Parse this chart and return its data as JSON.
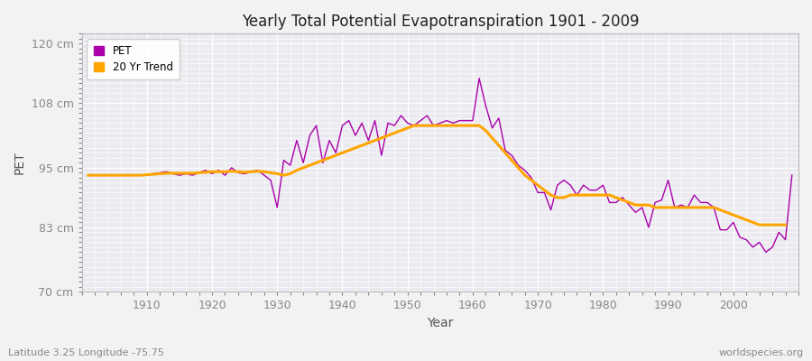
{
  "title": "Yearly Total Potential Evapotranspiration 1901 - 2009",
  "xlabel": "Year",
  "ylabel": "PET",
  "subtitle": "Latitude 3.25 Longitude -75.75",
  "watermark": "worldspecies.org",
  "ylim": [
    70,
    122
  ],
  "yticks": [
    70,
    83,
    95,
    108,
    120
  ],
  "ytick_labels": [
    "70 cm",
    "83 cm",
    "95 cm",
    "108 cm",
    "120 cm"
  ],
  "xlim": [
    1900,
    2010
  ],
  "xticks": [
    1910,
    1920,
    1930,
    1940,
    1950,
    1960,
    1970,
    1980,
    1990,
    2000
  ],
  "pet_color": "#AA00AA",
  "trend_color": "#FFA500",
  "fig_bg_color": "#F2F2F2",
  "plot_bg_color": "#EAEAF0",
  "grid_color": "#FFFFFF",
  "spine_color": "#BBBBBB",
  "tick_color": "#888888",
  "text_color": "#555555",
  "title_color": "#222222",
  "legend_bg": "#FFFFFF",
  "years": [
    1901,
    1902,
    1903,
    1904,
    1905,
    1906,
    1907,
    1908,
    1909,
    1910,
    1911,
    1912,
    1913,
    1914,
    1915,
    1916,
    1917,
    1918,
    1919,
    1920,
    1921,
    1922,
    1923,
    1924,
    1925,
    1926,
    1927,
    1928,
    1929,
    1930,
    1931,
    1932,
    1933,
    1934,
    1935,
    1936,
    1937,
    1938,
    1939,
    1940,
    1941,
    1942,
    1943,
    1944,
    1945,
    1946,
    1947,
    1948,
    1949,
    1950,
    1951,
    1952,
    1953,
    1954,
    1955,
    1956,
    1957,
    1958,
    1959,
    1960,
    1961,
    1962,
    1963,
    1964,
    1965,
    1966,
    1967,
    1968,
    1969,
    1970,
    1971,
    1972,
    1973,
    1974,
    1975,
    1976,
    1977,
    1978,
    1979,
    1980,
    1981,
    1982,
    1983,
    1984,
    1985,
    1986,
    1987,
    1988,
    1989,
    1990,
    1991,
    1992,
    1993,
    1994,
    1995,
    1996,
    1997,
    1998,
    1999,
    2000,
    2001,
    2002,
    2003,
    2004,
    2005,
    2006,
    2007,
    2008,
    2009
  ],
  "pet_values": [
    93.5,
    93.5,
    93.5,
    93.5,
    93.5,
    93.5,
    93.5,
    93.5,
    93.5,
    93.5,
    93.8,
    94.0,
    94.2,
    93.8,
    93.5,
    93.8,
    93.5,
    94.0,
    94.5,
    93.8,
    94.5,
    93.5,
    95.0,
    94.0,
    93.8,
    94.2,
    94.5,
    93.5,
    92.5,
    87.0,
    96.5,
    95.5,
    100.5,
    96.0,
    101.5,
    103.5,
    96.0,
    100.5,
    98.0,
    103.5,
    104.5,
    101.5,
    104.0,
    100.5,
    104.5,
    97.5,
    104.0,
    103.5,
    105.5,
    104.0,
    103.5,
    104.5,
    105.5,
    103.5,
    104.0,
    104.5,
    104.0,
    104.5,
    104.5,
    104.5,
    113.0,
    107.5,
    103.0,
    105.0,
    98.5,
    97.5,
    95.5,
    94.5,
    93.0,
    90.0,
    90.0,
    86.5,
    91.5,
    92.5,
    91.5,
    89.5,
    91.5,
    90.5,
    90.5,
    91.5,
    88.0,
    88.0,
    89.0,
    87.5,
    86.0,
    87.0,
    83.0,
    88.0,
    88.5,
    92.5,
    87.0,
    87.5,
    87.0,
    89.5,
    88.0,
    88.0,
    87.0,
    82.5,
    82.5,
    84.0,
    81.0,
    80.5,
    79.0,
    80.0,
    78.0,
    79.0,
    82.0,
    80.5,
    93.5
  ],
  "trend_values": [
    93.5,
    93.5,
    93.5,
    93.5,
    93.5,
    93.5,
    93.5,
    93.5,
    93.5,
    93.6,
    93.7,
    93.8,
    93.9,
    93.9,
    93.9,
    93.9,
    93.9,
    94.0,
    94.1,
    94.2,
    94.2,
    94.2,
    94.3,
    94.2,
    94.1,
    94.2,
    94.3,
    94.2,
    94.0,
    93.8,
    93.5,
    93.8,
    94.5,
    95.0,
    95.5,
    96.0,
    96.5,
    97.0,
    97.5,
    98.0,
    98.5,
    99.0,
    99.5,
    100.0,
    100.5,
    101.0,
    101.5,
    102.0,
    102.5,
    103.0,
    103.5,
    103.5,
    103.5,
    103.5,
    103.5,
    103.5,
    103.5,
    103.5,
    103.5,
    103.5,
    103.5,
    102.5,
    101.0,
    99.5,
    98.0,
    96.5,
    95.0,
    93.5,
    92.5,
    91.5,
    90.5,
    89.5,
    89.0,
    89.0,
    89.5,
    89.5,
    89.5,
    89.5,
    89.5,
    89.5,
    89.5,
    89.0,
    88.5,
    88.0,
    87.5,
    87.5,
    87.5,
    87.0,
    87.0,
    87.0,
    87.0,
    87.0,
    87.0,
    87.0,
    87.0,
    87.0,
    87.0,
    86.5,
    86.0,
    85.5,
    85.0,
    84.5,
    84.0,
    83.5,
    83.5,
    83.5,
    83.5,
    83.5,
    null
  ]
}
